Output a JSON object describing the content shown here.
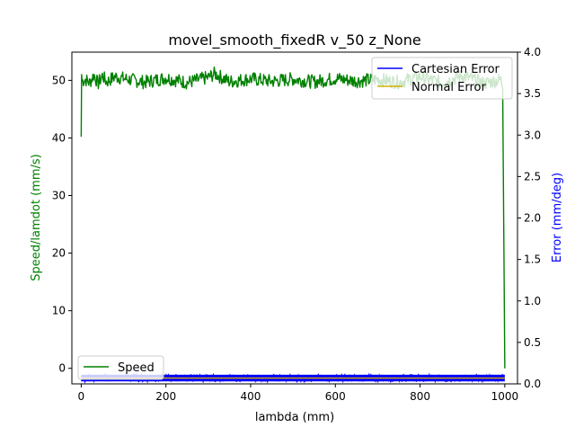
{
  "chart_data": {
    "type": "line",
    "title": "movel_smooth_fixedR v_50 z_None",
    "xlabel": "lambda (mm)",
    "ylabel_left": "Speed/lamdot (mm/s)",
    "ylabel_right": "Error (mm/deg)",
    "xlim": [
      -22,
      1030
    ],
    "ylim_left": [
      -2.7,
      54.9
    ],
    "ylim_right": [
      0.0,
      4.0
    ],
    "x_ticks": [
      0,
      200,
      400,
      600,
      800,
      1000
    ],
    "y_left_ticks": [
      0,
      10,
      20,
      30,
      40,
      50
    ],
    "y_right_ticks": [
      0.0,
      0.5,
      1.0,
      1.5,
      2.0,
      2.5,
      3.0,
      3.5,
      4.0
    ],
    "grid": false,
    "colors": {
      "speed": "#008000",
      "cartesian_error": "#0000ff",
      "normal_error": "#d4b000",
      "left_axis_label": "#008000",
      "right_axis_label": "#0000ff"
    },
    "legends": {
      "upper_right": [
        {
          "label": "Cartesian Error",
          "color": "#0000ff"
        },
        {
          "label": "Normal Error",
          "color": "#d4b000"
        }
      ],
      "lower_left": [
        {
          "label": "Speed",
          "color": "#008000"
        }
      ]
    },
    "series": [
      {
        "name": "Speed",
        "axis": "left",
        "color": "#008000",
        "x": [
          0,
          1,
          2,
          10,
          20,
          30,
          40,
          50,
          60,
          80,
          100,
          150,
          200,
          250,
          300,
          315,
          350,
          400,
          450,
          500,
          550,
          600,
          650,
          700,
          750,
          800,
          850,
          900,
          950,
          990,
          995,
          998,
          1000
        ],
        "y": [
          40.2,
          51.0,
          49.8,
          50.3,
          49.2,
          51.8,
          48.9,
          51.5,
          49.5,
          51.2,
          50.6,
          49.4,
          50.8,
          49.3,
          50.9,
          52.1,
          49.6,
          50.5,
          49.7,
          50.4,
          49.5,
          50.6,
          49.8,
          50.3,
          49.4,
          51.2,
          49.2,
          51.5,
          49.0,
          50.2,
          48.5,
          20.0,
          0.0
        ],
        "noise_band": 1.2
      },
      {
        "name": "Cartesian Error",
        "axis": "right",
        "color": "#0000ff",
        "x": [
          0,
          1000
        ],
        "y": [
          0.08,
          0.08
        ],
        "band": [
          0.03,
          0.11
        ]
      },
      {
        "name": "Normal Error",
        "axis": "right",
        "color": "#d4b000",
        "x": [
          0,
          1000
        ],
        "y": [
          0.07,
          0.07
        ]
      }
    ]
  }
}
